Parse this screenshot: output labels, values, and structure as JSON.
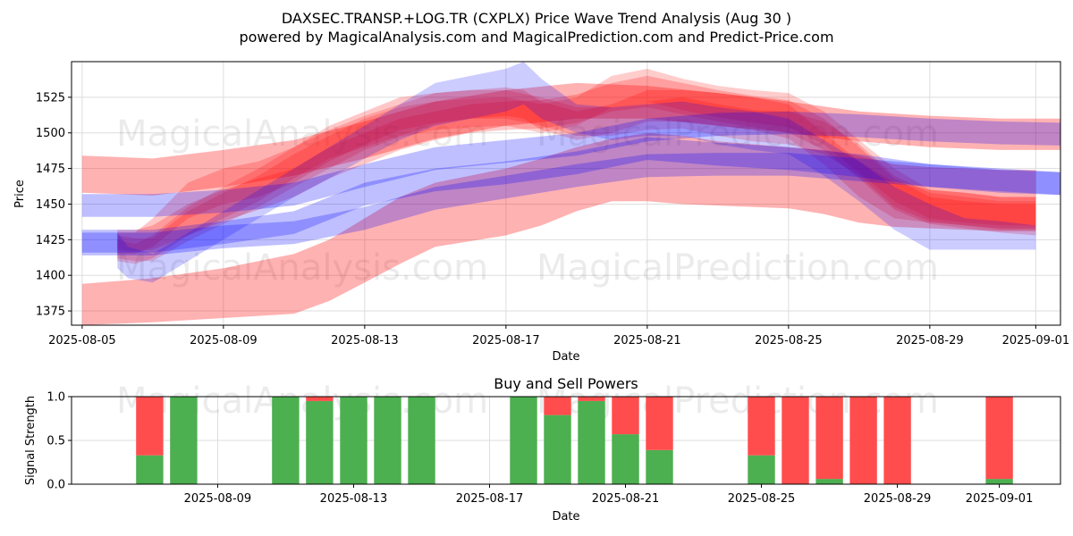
{
  "title_line1": "DAXSEC.TRANSP.+LOG.TR (CXPLX) Price Wave Trend Analysis (Aug 30 )",
  "title_line2": "powered by MagicalAnalysis.com and MagicalPrediction.com and Predict-Price.com",
  "watermarks": [
    "MagicalAnalysis.com",
    "MagicalPrediction.com"
  ],
  "colors": {
    "red": "#ff0000",
    "blue": "#0000ff",
    "buy": "#4caf50",
    "sell": "#ff4d4d",
    "grid": "#dddddd"
  },
  "chart_data": [
    {
      "type": "area",
      "name": "price-wave",
      "xlabel": "Date",
      "ylabel": "Price",
      "xlim_day": [
        4.7,
        32.7
      ],
      "ylim": [
        1365,
        1550
      ],
      "x_ticks": [
        {
          "day": 5,
          "label": "2025-08-05"
        },
        {
          "day": 9,
          "label": "2025-08-09"
        },
        {
          "day": 13,
          "label": "2025-08-13"
        },
        {
          "day": 17,
          "label": "2025-08-17"
        },
        {
          "day": 21,
          "label": "2025-08-21"
        },
        {
          "day": 25,
          "label": "2025-08-25"
        },
        {
          "day": 29,
          "label": "2025-08-29"
        },
        {
          "day": 32,
          "label": "2025-09-01"
        }
      ],
      "y_ticks": [
        1375,
        1400,
        1425,
        1450,
        1475,
        1500,
        1525
      ],
      "bands": [
        {
          "color": "red",
          "opacity": 0.3,
          "x": [
            5,
            7,
            9,
            11,
            13,
            15,
            17,
            19,
            21,
            23,
            25,
            27,
            29,
            31,
            33
          ],
          "upper": [
            1484,
            1482,
            1488,
            1495,
            1508,
            1522,
            1530,
            1535,
            1533,
            1528,
            1522,
            1515,
            1512,
            1510,
            1510
          ],
          "lower": [
            1458,
            1456,
            1462,
            1470,
            1482,
            1496,
            1505,
            1510,
            1510,
            1505,
            1500,
            1494,
            1490,
            1488,
            1488
          ]
        },
        {
          "color": "red",
          "opacity": 0.3,
          "x": [
            5,
            7,
            9,
            11,
            12,
            13,
            14,
            15,
            17,
            18,
            19,
            20,
            21,
            22,
            23,
            25,
            26,
            27,
            28,
            29,
            30,
            31,
            32
          ],
          "upper": [
            1394,
            1398,
            1405,
            1415,
            1425,
            1440,
            1455,
            1465,
            1475,
            1482,
            1490,
            1496,
            1500,
            1498,
            1494,
            1490,
            1488,
            1484,
            1478,
            1476,
            1475,
            1474,
            1474
          ],
          "lower": [
            1365,
            1367,
            1370,
            1373,
            1382,
            1395,
            1408,
            1420,
            1428,
            1435,
            1445,
            1452,
            1452,
            1450,
            1449,
            1447,
            1443,
            1437,
            1434,
            1433,
            1432,
            1431,
            1431
          ]
        },
        {
          "color": "red",
          "opacity": 0.22,
          "x": [
            6,
            6.5,
            7,
            8,
            9,
            10,
            11,
            12,
            13,
            14,
            15,
            16,
            17,
            17.5,
            18,
            19,
            20,
            21,
            22,
            23,
            24,
            25,
            26,
            27,
            28,
            29,
            30,
            31,
            32
          ],
          "upper": [
            1430,
            1430,
            1440,
            1465,
            1475,
            1480,
            1490,
            1505,
            1515,
            1525,
            1528,
            1530,
            1532,
            1530,
            1522,
            1515,
            1520,
            1530,
            1530,
            1528,
            1525,
            1520,
            1500,
            1480,
            1465,
            1460,
            1458,
            1455,
            1455
          ],
          "lower": [
            1415,
            1415,
            1420,
            1440,
            1450,
            1455,
            1465,
            1480,
            1492,
            1502,
            1507,
            1510,
            1512,
            1510,
            1502,
            1495,
            1500,
            1508,
            1508,
            1505,
            1502,
            1496,
            1478,
            1455,
            1440,
            1437,
            1435,
            1433,
            1433
          ]
        },
        {
          "color": "red",
          "opacity": 0.22,
          "x": [
            6,
            6.5,
            7,
            8,
            9,
            10,
            11,
            12,
            13,
            14,
            15,
            16,
            17,
            18,
            19,
            20,
            21,
            22,
            23,
            24,
            25,
            26,
            27,
            28,
            29,
            30,
            31,
            32
          ],
          "upper": [
            1432,
            1432,
            1435,
            1450,
            1460,
            1468,
            1475,
            1490,
            1500,
            1510,
            1515,
            1520,
            1522,
            1523,
            1527,
            1535,
            1540,
            1535,
            1530,
            1526,
            1523,
            1510,
            1490,
            1468,
            1455,
            1452,
            1450,
            1450
          ],
          "lower": [
            1418,
            1417,
            1418,
            1428,
            1438,
            1446,
            1455,
            1468,
            1478,
            1488,
            1495,
            1500,
            1502,
            1503,
            1507,
            1515,
            1518,
            1513,
            1508,
            1504,
            1500,
            1488,
            1468,
            1446,
            1436,
            1433,
            1430,
            1428
          ]
        },
        {
          "color": "red",
          "opacity": 0.2,
          "x": [
            6,
            6.5,
            7,
            8,
            9,
            10,
            11,
            12,
            13,
            14,
            15,
            16,
            17,
            18,
            19,
            20,
            21,
            22,
            23,
            24,
            25,
            26,
            27,
            28,
            29,
            30,
            31,
            32
          ],
          "upper": [
            1428,
            1426,
            1426,
            1445,
            1458,
            1470,
            1485,
            1498,
            1510,
            1518,
            1522,
            1524,
            1525,
            1520,
            1525,
            1540,
            1545,
            1538,
            1533,
            1530,
            1528,
            1515,
            1495,
            1475,
            1460,
            1458,
            1455,
            1455
          ],
          "lower": [
            1412,
            1410,
            1410,
            1424,
            1436,
            1448,
            1462,
            1475,
            1488,
            1497,
            1502,
            1504,
            1505,
            1500,
            1505,
            1518,
            1522,
            1516,
            1511,
            1507,
            1504,
            1492,
            1472,
            1452,
            1440,
            1437,
            1435,
            1435
          ]
        },
        {
          "color": "red",
          "opacity": 0.2,
          "x": [
            6,
            6.5,
            7,
            8,
            9,
            10,
            11,
            12,
            13,
            14,
            15,
            16,
            17,
            18,
            19,
            20,
            21,
            22,
            23,
            24,
            25,
            26,
            27,
            28,
            29,
            30,
            31,
            32
          ],
          "upper": [
            1425,
            1422,
            1428,
            1448,
            1462,
            1475,
            1490,
            1502,
            1512,
            1520,
            1528,
            1530,
            1530,
            1525,
            1518,
            1518,
            1522,
            1525,
            1520,
            1516,
            1515,
            1508,
            1492,
            1470,
            1458,
            1455,
            1452,
            1452
          ],
          "lower": [
            1410,
            1408,
            1412,
            1428,
            1440,
            1452,
            1468,
            1482,
            1490,
            1498,
            1506,
            1510,
            1510,
            1505,
            1498,
            1498,
            1502,
            1503,
            1498,
            1494,
            1492,
            1485,
            1470,
            1448,
            1438,
            1435,
            1432,
            1432
          ]
        },
        {
          "color": "blue",
          "opacity": 0.25,
          "x": [
            5,
            7,
            9,
            11,
            13,
            15,
            17,
            19,
            21,
            23,
            25,
            27,
            29,
            31,
            33
          ],
          "upper": [
            1457,
            1457,
            1460,
            1465,
            1478,
            1490,
            1495,
            1500,
            1510,
            1514,
            1515,
            1513,
            1510,
            1508,
            1507
          ],
          "lower": [
            1441,
            1441,
            1444,
            1449,
            1462,
            1474,
            1479,
            1484,
            1494,
            1498,
            1499,
            1497,
            1494,
            1492,
            1491
          ]
        },
        {
          "color": "blue",
          "opacity": 0.25,
          "x": [
            5,
            7,
            9,
            11,
            13,
            15,
            17,
            19,
            21,
            23,
            25,
            27,
            29,
            31,
            33
          ],
          "upper": [
            1430,
            1430,
            1435,
            1438,
            1448,
            1462,
            1470,
            1478,
            1485,
            1486,
            1486,
            1482,
            1478,
            1475,
            1472
          ],
          "lower": [
            1414,
            1414,
            1419,
            1422,
            1432,
            1446,
            1454,
            1462,
            1469,
            1470,
            1470,
            1466,
            1462,
            1459,
            1456
          ]
        },
        {
          "color": "blue",
          "opacity": 0.25,
          "x": [
            5,
            7,
            9,
            11,
            12,
            13,
            15,
            17,
            19,
            21,
            23,
            25,
            27,
            29,
            31,
            33
          ],
          "upper": [
            1432,
            1432,
            1438,
            1445,
            1455,
            1465,
            1475,
            1480,
            1487,
            1497,
            1493,
            1490,
            1485,
            1478,
            1474,
            1472
          ],
          "lower": [
            1416,
            1416,
            1422,
            1429,
            1439,
            1449,
            1459,
            1464,
            1471,
            1481,
            1477,
            1474,
            1469,
            1462,
            1458,
            1456
          ]
        },
        {
          "color": "blue",
          "opacity": 0.2,
          "x": [
            6,
            6.3,
            7,
            8,
            9,
            10,
            11,
            12,
            13,
            14,
            15,
            16,
            17,
            17.5,
            18,
            19,
            20,
            21,
            22,
            23,
            24,
            25,
            26,
            27,
            28,
            29,
            30,
            31,
            32
          ],
          "upper": [
            1430,
            1420,
            1415,
            1430,
            1445,
            1460,
            1475,
            1490,
            1505,
            1520,
            1535,
            1540,
            1545,
            1550,
            1538,
            1520,
            1518,
            1520,
            1522,
            1518,
            1515,
            1510,
            1495,
            1480,
            1462,
            1450,
            1440,
            1438,
            1435
          ],
          "lower": [
            1405,
            1398,
            1395,
            1410,
            1425,
            1440,
            1455,
            1468,
            1482,
            1495,
            1505,
            1510,
            1515,
            1520,
            1510,
            1500,
            1495,
            1498,
            1498,
            1492,
            1488,
            1485,
            1470,
            1452,
            1432,
            1418,
            1418,
            1418,
            1418
          ]
        }
      ]
    },
    {
      "type": "bar",
      "name": "buy-sell-powers",
      "title": "Buy and Sell Powers",
      "xlabel": "Date",
      "ylabel": "Signal Strength",
      "xlim_day": [
        4.7,
        33.8
      ],
      "ylim": [
        0,
        1.0
      ],
      "x_ticks": [
        {
          "day": 9,
          "label": "2025-08-09"
        },
        {
          "day": 13,
          "label": "2025-08-13"
        },
        {
          "day": 17,
          "label": "2025-08-17"
        },
        {
          "day": 21,
          "label": "2025-08-21"
        },
        {
          "day": 25,
          "label": "2025-08-25"
        },
        {
          "day": 29,
          "label": "2025-08-29"
        },
        {
          "day": 32,
          "label": "2025-09-01"
        }
      ],
      "y_ticks": [
        {
          "value": 0,
          "label": "0.0"
        },
        {
          "value": 0.5,
          "label": "0.5"
        },
        {
          "value": 1.0,
          "label": "1.0"
        }
      ],
      "bars": [
        {
          "date": "2025-08-07",
          "day": 7,
          "buy": 0.33
        },
        {
          "date": "2025-08-08",
          "day": 8,
          "buy": 1.0
        },
        {
          "date": "2025-08-11",
          "day": 11,
          "buy": 1.0
        },
        {
          "date": "2025-08-12",
          "day": 12,
          "buy": 0.95
        },
        {
          "date": "2025-08-13",
          "day": 13,
          "buy": 1.0
        },
        {
          "date": "2025-08-14",
          "day": 14,
          "buy": 1.0
        },
        {
          "date": "2025-08-15",
          "day": 15,
          "buy": 1.0
        },
        {
          "date": "2025-08-18",
          "day": 18,
          "buy": 1.0
        },
        {
          "date": "2025-08-19",
          "day": 19,
          "buy": 0.79
        },
        {
          "date": "2025-08-20",
          "day": 20,
          "buy": 0.95
        },
        {
          "date": "2025-08-21",
          "day": 21,
          "buy": 0.57
        },
        {
          "date": "2025-08-22",
          "day": 22,
          "buy": 0.39
        },
        {
          "date": "2025-08-25",
          "day": 25,
          "buy": 0.33
        },
        {
          "date": "2025-08-26",
          "day": 26,
          "buy": 0.0
        },
        {
          "date": "2025-08-27",
          "day": 27,
          "buy": 0.06
        },
        {
          "date": "2025-08-28",
          "day": 28,
          "buy": 0.0
        },
        {
          "date": "2025-08-29",
          "day": 29,
          "buy": 0.0
        },
        {
          "date": "2025-09-01",
          "day": 32,
          "buy": 0.06
        }
      ]
    }
  ]
}
